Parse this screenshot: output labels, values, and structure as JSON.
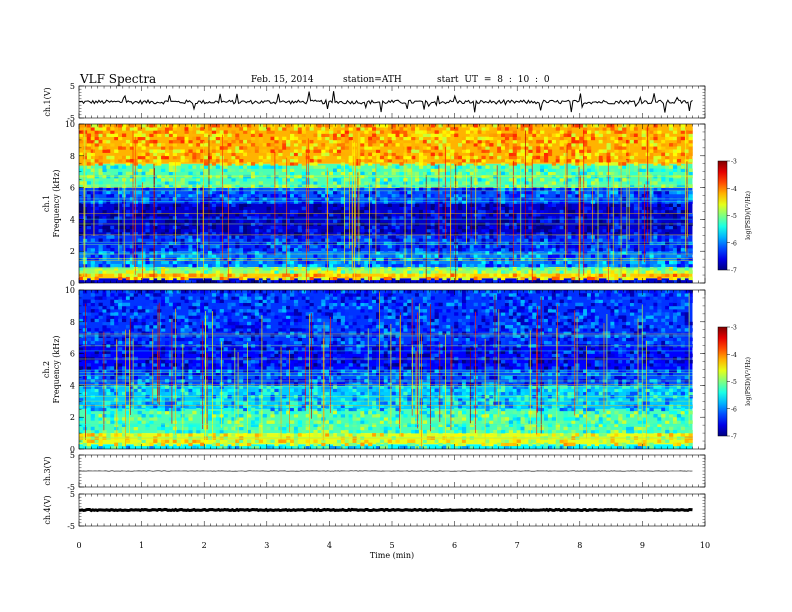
{
  "header": {
    "title": "VLF  Spectra",
    "date": "Feb. 15, 2014",
    "station": "station=ATH",
    "start": "start  UT =   8 : 10 : 0"
  },
  "chart_data": [
    {
      "type": "line",
      "panel": "ch1-waveform",
      "ylabel": "ch.1(V)",
      "ylim": [
        -5,
        5
      ],
      "yticks": [
        "5",
        "-5"
      ],
      "xlim": [
        0,
        10
      ],
      "data_x_end": 9.8,
      "baseline": 0,
      "series_color": "#000000"
    },
    {
      "type": "heatmap",
      "panel": "ch1-spectrogram",
      "ylabel": [
        "ch.1",
        "Frequency  (kHz)"
      ],
      "ylim": [
        0,
        10
      ],
      "yticks": [
        "0",
        "2",
        "4",
        "6",
        "8",
        "10"
      ],
      "xlim": [
        0,
        10
      ],
      "data_x_end": 9.8,
      "colorbar": {
        "label": "log(PSD)(V²/Hz)",
        "range": [
          -7,
          -3
        ],
        "ticks": [
          "-3",
          "-4",
          "-5",
          "-6",
          "-7"
        ]
      },
      "bands_khz_logpsd": [
        {
          "f": [
            0,
            0.3
          ],
          "v": -6.7
        },
        {
          "f": [
            0.3,
            0.6
          ],
          "v": -4.3
        },
        {
          "f": [
            0.6,
            1.0
          ],
          "v": -4.9
        },
        {
          "f": [
            1.0,
            2.0
          ],
          "v": -6.0
        },
        {
          "f": [
            2.0,
            3.0
          ],
          "v": -6.3
        },
        {
          "f": [
            3.0,
            5.0
          ],
          "v": -6.7
        },
        {
          "f": [
            5.0,
            6.0
          ],
          "v": -6.2
        },
        {
          "f": [
            6.0,
            7.5
          ],
          "v": -5.2
        },
        {
          "f": [
            7.5,
            10.0
          ],
          "v": -4.2
        }
      ]
    },
    {
      "type": "heatmap",
      "panel": "ch2-spectrogram",
      "ylabel": [
        "ch.2",
        "Frequency  (kHz)"
      ],
      "ylim": [
        0,
        10
      ],
      "yticks": [
        "0",
        "2",
        "4",
        "6",
        "8",
        "10"
      ],
      "xlim": [
        0,
        10
      ],
      "data_x_end": 9.8,
      "colorbar": {
        "label": "log(PSD)(V²/Hz)",
        "range": [
          -7,
          -3
        ],
        "ticks": [
          "-3",
          "-4",
          "-5",
          "-6",
          "-7"
        ]
      },
      "bands_khz_logpsd": [
        {
          "f": [
            0,
            0.3
          ],
          "v": -5.5
        },
        {
          "f": [
            0.3,
            1.0
          ],
          "v": -4.6
        },
        {
          "f": [
            1.0,
            2.5
          ],
          "v": -5.2
        },
        {
          "f": [
            2.5,
            4.0
          ],
          "v": -5.7
        },
        {
          "f": [
            4.0,
            5.0
          ],
          "v": -6.2
        },
        {
          "f": [
            5.0,
            6.5
          ],
          "v": -6.5
        },
        {
          "f": [
            6.5,
            10.0
          ],
          "v": -6.3
        }
      ]
    },
    {
      "type": "line",
      "panel": "ch3-waveform",
      "ylabel": "ch.3(V)",
      "ylim": [
        -5,
        5
      ],
      "yticks": [
        "5",
        "-5"
      ],
      "xlim": [
        0,
        10
      ],
      "data_x_end": 9.8,
      "baseline": 0,
      "series_color": "#000000"
    },
    {
      "type": "line",
      "panel": "ch4-waveform",
      "ylabel": "ch.4(V)",
      "ylim": [
        -5,
        5
      ],
      "yticks": [
        "5",
        "-5"
      ],
      "xlim": [
        0,
        10
      ],
      "data_x_end": 9.8,
      "baseline": 0,
      "series_color": "#000000"
    }
  ],
  "xaxis": {
    "label": "Time  (min)",
    "ticks": [
      "0",
      "1",
      "2",
      "3",
      "4",
      "5",
      "6",
      "7",
      "8",
      "9",
      "10"
    ]
  }
}
